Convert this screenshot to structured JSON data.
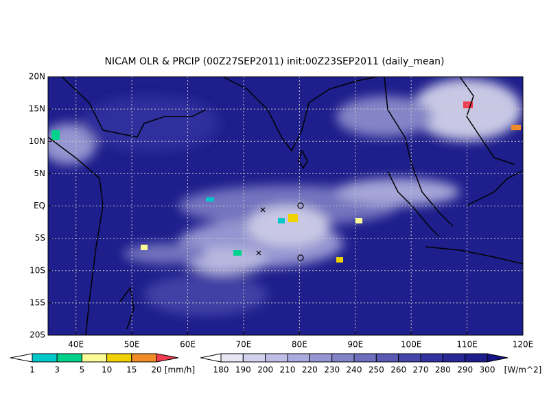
{
  "title": "NICAM OLR & PRCIP (00Z27SEP2011) init:00Z23SEP2011 (daily_mean)",
  "lat_labels": [
    "20N",
    "15N",
    "10N",
    "5N",
    "EQ",
    "5S",
    "10S",
    "15S",
    "20S"
  ],
  "lon_labels": [
    "40E",
    "50E",
    "60E",
    "70E",
    "80E",
    "90E",
    "100E",
    "110E",
    "120E"
  ],
  "precip_legend": {
    "labels": [
      "1",
      "3",
      "5",
      "10",
      "15",
      "20"
    ],
    "unit": "[mm/h]",
    "colors": [
      "#ffffff",
      "#00c8c8",
      "#00d28c",
      "#fafa96",
      "#f0d200",
      "#f08c28",
      "#f03c50"
    ]
  },
  "olr_legend": {
    "labels": [
      "180",
      "190",
      "200",
      "210",
      "220",
      "230",
      "240",
      "250",
      "260",
      "270",
      "280",
      "290",
      "300"
    ],
    "unit": "[W/m^2]",
    "colors": [
      "#ffffff",
      "#e6e6f5",
      "#d2d2ee",
      "#bebee6",
      "#aaaade",
      "#9696d2",
      "#8282c8",
      "#6e6ebe",
      "#5a5ab4",
      "#4646aa",
      "#3232a0",
      "#282896",
      "#1e1e8c",
      "#141482"
    ]
  }
}
